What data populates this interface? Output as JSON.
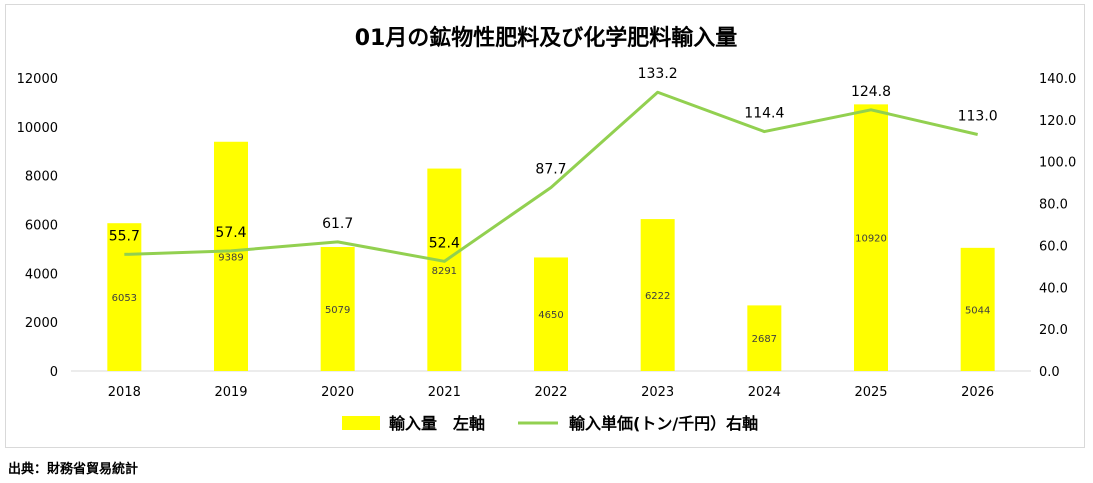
{
  "chart_data": {
    "type": "bar",
    "title": "01月の鉱物性肥料及び化学肥料輸入量",
    "categories": [
      "2018",
      "2019",
      "2020",
      "2021",
      "2022",
      "2023",
      "2024",
      "2025",
      "2026"
    ],
    "series": [
      {
        "name": "輸入量　左軸",
        "kind": "bar",
        "axis": "left",
        "values": [
          6053,
          9389,
          5079,
          8291,
          4650,
          6222,
          2687,
          10920,
          5044
        ]
      },
      {
        "name": "輸入単価(トン/千円）右軸",
        "kind": "line",
        "axis": "right",
        "values": [
          55.7,
          57.4,
          61.7,
          52.4,
          87.7,
          133.2,
          114.4,
          124.8,
          113.0
        ]
      }
    ],
    "y_left": {
      "min": 0,
      "max": 12000,
      "ticks": [
        "0",
        "2000",
        "4000",
        "6000",
        "8000",
        "10000",
        "12000"
      ]
    },
    "y_right": {
      "min": 0,
      "max": 140,
      "ticks": [
        "0.0",
        "20.0",
        "40.0",
        "60.0",
        "80.0",
        "100.0",
        "120.0",
        "140.0"
      ]
    },
    "bar_labels": [
      "6053",
      "9389",
      "5079",
      "8291",
      "4650",
      "6222",
      "2687",
      "10920",
      "5044"
    ],
    "line_labels": [
      "55.7",
      "57.4",
      "61.7",
      "52.4",
      "87.7",
      "133.2",
      "114.4",
      "124.8",
      "113.0"
    ],
    "legend_position": "bottom",
    "grid": false
  },
  "colors": {
    "bar": "#ffff00",
    "line": "#92d050"
  },
  "source": "出典：財務省貿易統計"
}
